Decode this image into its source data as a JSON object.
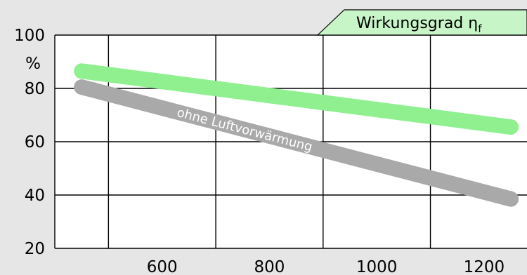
{
  "chart_data": {
    "type": "line",
    "title": "Wirkungsgrad η",
    "title_subscript": "f",
    "ylabel_unit": "%",
    "xlim": [
      400,
      1280
    ],
    "ylim": [
      20,
      100
    ],
    "x_ticks": [
      600,
      800,
      1000,
      1200
    ],
    "y_ticks": [
      20,
      40,
      60,
      80,
      100
    ],
    "grid": true,
    "series": [
      {
        "name": "",
        "color": "#90f090",
        "x": [
          450,
          1250
        ],
        "y": [
          86.5,
          65.5
        ]
      },
      {
        "name": "ohne Luftvorwärmung",
        "color": "#a9a9a9",
        "x": [
          450,
          1250
        ],
        "y": [
          80.5,
          38.5
        ]
      }
    ]
  }
}
